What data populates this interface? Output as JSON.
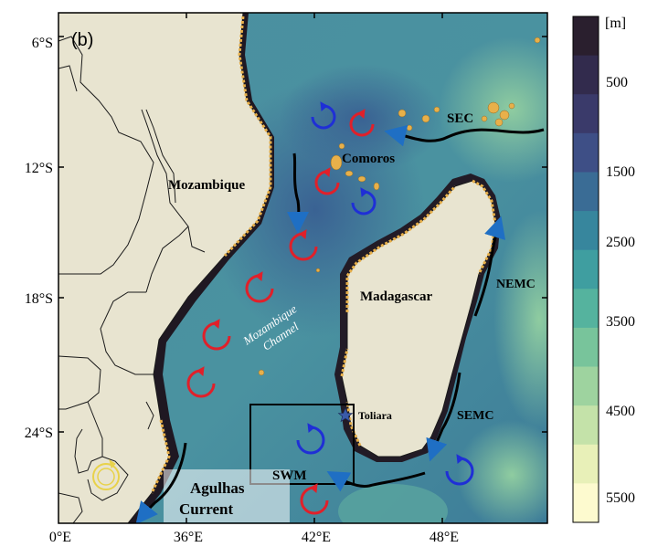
{
  "panel_label": "(b)",
  "axes": {
    "y_ticks": [
      "6°S",
      "12°S",
      "18°S",
      "24°S"
    ],
    "x_ticks": [
      "0°E",
      "36°E",
      "42°E",
      "48°E"
    ]
  },
  "colorbar": {
    "unit": "[m]",
    "ticks": [
      "500",
      "1500",
      "2500",
      "3500",
      "4500",
      "5500"
    ],
    "colors": [
      "#2a1f2e",
      "#322b4d",
      "#3a3a6a",
      "#3e4f86",
      "#3a6c95",
      "#37869d",
      "#3f9ea0",
      "#55b39e",
      "#78c49b",
      "#9ed39f",
      "#c4e2a9",
      "#e8f0b8",
      "#fdfacf"
    ]
  },
  "labels": {
    "mozambique": "Mozambique",
    "madagascar": "Madagascar",
    "comoros": "Comoros",
    "channel_line1": "Mozambique",
    "channel_line2": "Channel",
    "toliara": "Toliara",
    "sec": "SEC",
    "nemc": "NEMC",
    "semc": "SEMC",
    "swm": "SWM",
    "agulhas_line1": "Agulhas",
    "agulhas_line2": "Current"
  },
  "colors": {
    "land": "#e8e4d0",
    "border": "#1a1a1a",
    "reef": "#e8b04a",
    "shelf": "#1e1820",
    "cyclonic": "#1f2fd6",
    "anticyclonic": "#e0202a",
    "yellow_eddy": "#e8d24a",
    "arrow_head": "#1f6fc4"
  },
  "eddies": [
    {
      "kind": "cyclonic"
    },
    {
      "kind": "anticyclonic"
    },
    {
      "kind": "anticyclonic"
    },
    {
      "kind": "cyclonic"
    },
    {
      "kind": "anticyclonic"
    },
    {
      "kind": "anticyclonic"
    },
    {
      "kind": "anticyclonic"
    },
    {
      "kind": "anticyclonic"
    },
    {
      "kind": "cyclonic"
    },
    {
      "kind": "anticyclonic"
    },
    {
      "kind": "cyclonic"
    },
    {
      "kind": "yellow"
    }
  ]
}
